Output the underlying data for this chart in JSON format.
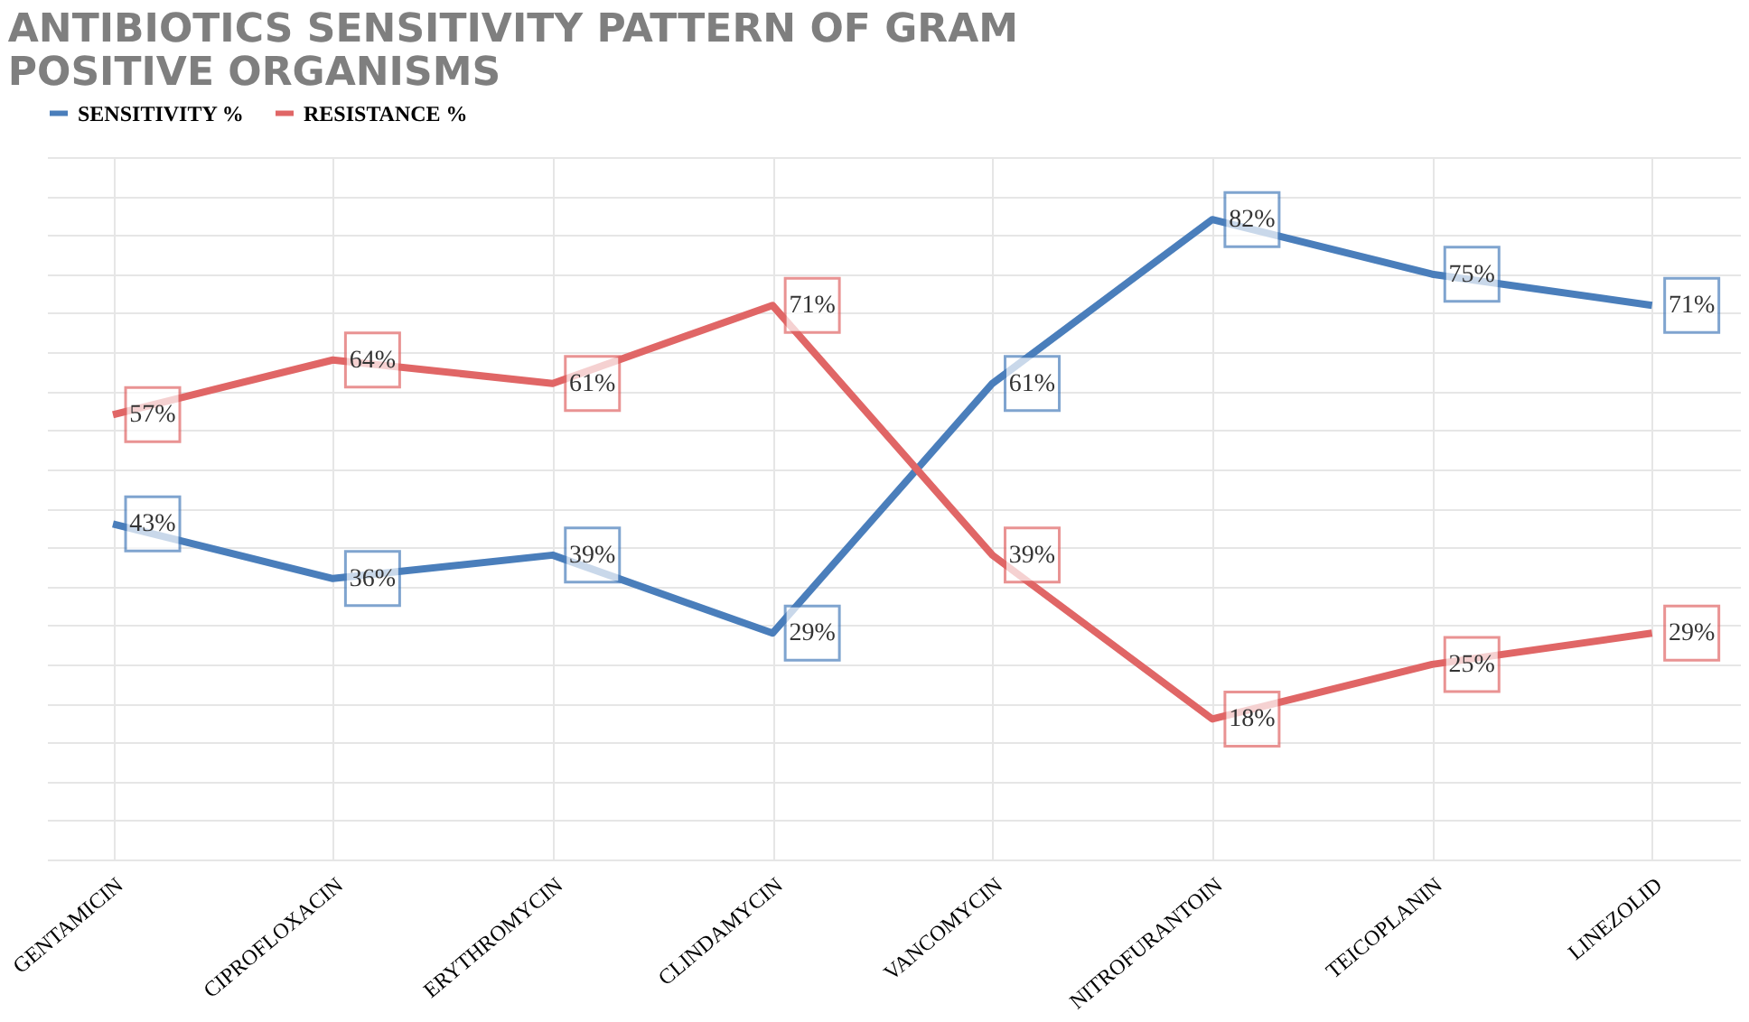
{
  "chart_data": {
    "type": "line",
    "title": "ANTIBIOTICS SENSITIVITY PATTERN OF GRAM POSITIVE ORGANISMS",
    "categories": [
      "GENTAMICIN",
      "CIPROFLOXACIN",
      "ERYTHROMYCIN",
      "CLINDAMYCIN",
      "VANCOMYCIN",
      "NITROFURANTOIN",
      "TEICOPLANIN",
      "LINEZOLID"
    ],
    "series": [
      {
        "name": "SENSITIVITY %",
        "color": "#4a7ebb",
        "values": [
          43,
          36,
          39,
          29,
          61,
          82,
          75,
          71
        ],
        "value_labels": [
          "43%",
          "36%",
          "39%",
          "29%",
          "61%",
          "82%",
          "75%",
          "71%"
        ]
      },
      {
        "name": "RESISTANCE %",
        "color": "#e06666",
        "values": [
          57,
          64,
          61,
          71,
          39,
          18,
          25,
          29
        ],
        "value_labels": [
          "57%",
          "64%",
          "61%",
          "71%",
          "39%",
          "18%",
          "25%",
          "29%"
        ]
      }
    ],
    "grid": true,
    "legend": "top",
    "marker": "none",
    "line_style": "solid"
  }
}
